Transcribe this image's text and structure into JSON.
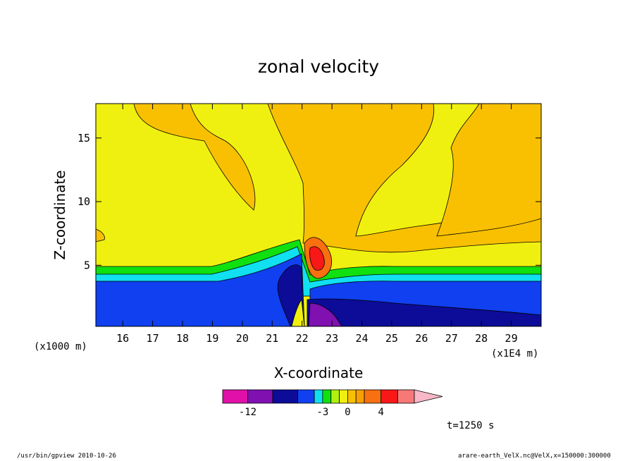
{
  "chart_data": {
    "type": "contour",
    "title": "zonal velocity",
    "xlabel": "X-coordinate",
    "ylabel": "Z-coordinate",
    "x_unit_left": "(x1000 m)",
    "x_unit_right": "(x1E4 m)",
    "x_ticks": [
      "16",
      "17",
      "18",
      "19",
      "20",
      "21",
      "22",
      "23",
      "24",
      "25",
      "26",
      "27",
      "28",
      "29"
    ],
    "y_ticks": [
      "5",
      "10",
      "15"
    ],
    "xlim": [
      15.1,
      30.0
    ],
    "ylim": [
      0.2,
      17.7
    ],
    "colorbar": {
      "tick_labels": [
        "-12",
        "-3",
        "0",
        "4"
      ],
      "tick_values": [
        -12,
        -3,
        0,
        4
      ],
      "bins": [
        {
          "lo": -15,
          "hi": -12,
          "color": "#e010a8"
        },
        {
          "lo": -12,
          "hi": -9,
          "color": "#8010b0"
        },
        {
          "lo": -9,
          "hi": -6,
          "color": "#0c0c98"
        },
        {
          "lo": -6,
          "hi": -4,
          "color": "#1040f0"
        },
        {
          "lo": -4,
          "hi": -3,
          "color": "#10e0f0"
        },
        {
          "lo": -3,
          "hi": -2,
          "color": "#10e010"
        },
        {
          "lo": -2,
          "hi": -1,
          "color": "#b0f010"
        },
        {
          "lo": -1,
          "hi": 0,
          "color": "#f0f010"
        },
        {
          "lo": 0,
          "hi": 1,
          "color": "#f8c000"
        },
        {
          "lo": 1,
          "hi": 2,
          "color": "#f8a000"
        },
        {
          "lo": 2,
          "hi": 4,
          "color": "#f87010"
        },
        {
          "lo": 4,
          "hi": 6,
          "color": "#f81818"
        },
        {
          "lo": 6,
          "hi": 8,
          "color": "#f87878"
        },
        {
          "lo": 8,
          "hi": 10,
          "color": "#f8b8c8",
          "extend": true
        }
      ]
    },
    "annotation": "t=1250 s"
  },
  "footer": {
    "left": "/usr/bin/gpview  2010-10-26",
    "right": "arare-earth_VelX.nc@VelX,x=150000:300000"
  }
}
